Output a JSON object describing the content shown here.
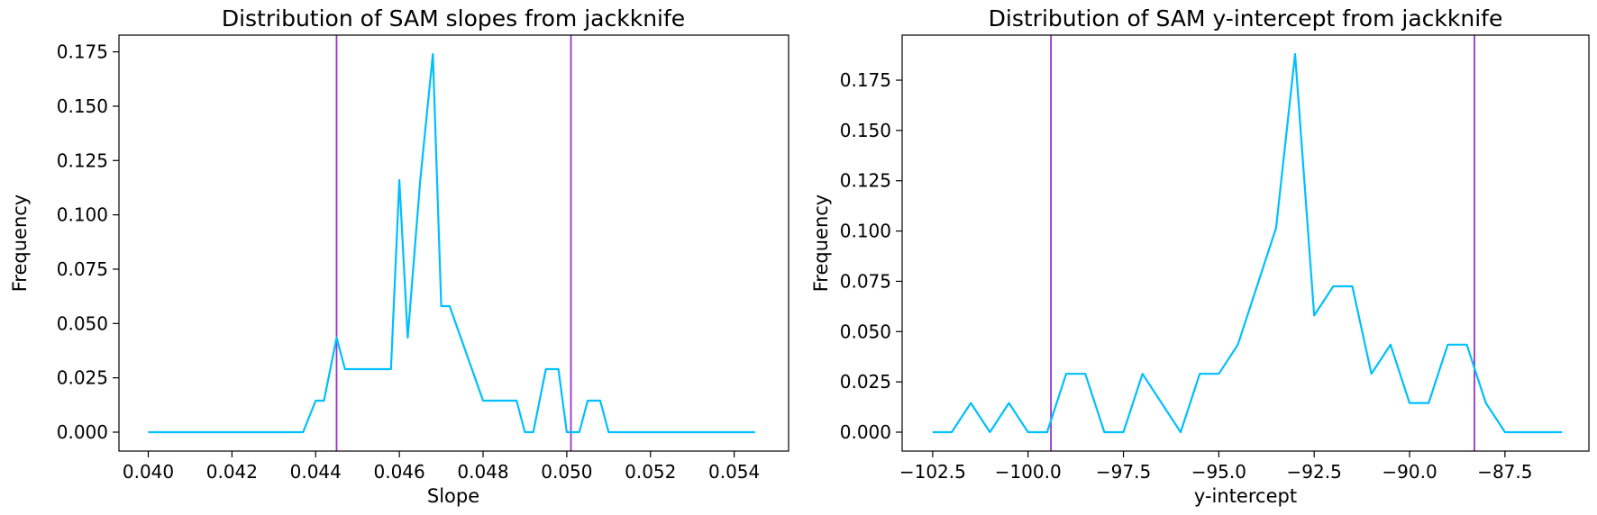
{
  "chart_data": [
    {
      "type": "line",
      "title": "Distribution of SAM slopes from jackknife",
      "xlabel": "Slope",
      "ylabel": "Frequency",
      "xlim": [
        0.0393,
        0.0553
      ],
      "ylim": [
        -0.0087,
        0.1827
      ],
      "xticks": [
        0.04,
        0.042,
        0.044,
        0.046,
        0.048,
        0.05,
        0.052,
        0.054
      ],
      "xtick_labels": [
        "0.040",
        "0.042",
        "0.044",
        "0.046",
        "0.048",
        "0.050",
        "0.052",
        "0.054"
      ],
      "yticks": [
        0.0,
        0.025,
        0.05,
        0.075,
        0.1,
        0.125,
        0.15,
        0.175
      ],
      "ytick_labels": [
        "0.000",
        "0.025",
        "0.050",
        "0.075",
        "0.100",
        "0.125",
        "0.150",
        "0.175"
      ],
      "vlines": [
        0.0445,
        0.0501
      ],
      "vline_color": "#9932cc",
      "series": [
        {
          "color": "#00bfff",
          "x": [
            0.04,
            0.0437,
            0.044,
            0.0442,
            0.0445,
            0.0447,
            0.0458,
            0.046,
            0.0462,
            0.0465,
            0.0468,
            0.047,
            0.0472,
            0.048,
            0.0488,
            0.049,
            0.0492,
            0.0495,
            0.0498,
            0.05,
            0.0503,
            0.0505,
            0.0508,
            0.051,
            0.0545
          ],
          "y": [
            0.0,
            0.0,
            0.0145,
            0.0145,
            0.0435,
            0.029,
            0.029,
            0.116,
            0.0435,
            0.116,
            0.174,
            0.058,
            0.058,
            0.0145,
            0.0145,
            0.0,
            0.0,
            0.029,
            0.029,
            0.0,
            0.0,
            0.0145,
            0.0145,
            0.0,
            0.0
          ]
        }
      ]
    },
    {
      "type": "line",
      "title": "Distribution of SAM y-intercept from jackknife",
      "xlabel": "y-intercept",
      "ylabel": "Frequency",
      "xlim": [
        -103.3,
        -85.3
      ],
      "ylim": [
        -0.0094,
        0.1974
      ],
      "xticks": [
        -102.5,
        -100.0,
        -97.5,
        -95.0,
        -92.5,
        -90.0,
        -87.5
      ],
      "xtick_labels": [
        "−102.5",
        "−100.0",
        "−97.5",
        "−95.0",
        "−92.5",
        "−90.0",
        "−87.5"
      ],
      "yticks": [
        0.0,
        0.025,
        0.05,
        0.075,
        0.1,
        0.125,
        0.15,
        0.175
      ],
      "ytick_labels": [
        "0.000",
        "0.025",
        "0.050",
        "0.075",
        "0.100",
        "0.125",
        "0.150",
        "0.175"
      ],
      "vlines": [
        -99.4,
        -88.3
      ],
      "vline_color": "#9932cc",
      "series": [
        {
          "color": "#00bfff",
          "x": [
            -102.5,
            -102.0,
            -101.5,
            -101.0,
            -100.5,
            -100.0,
            -99.5,
            -99.0,
            -98.5,
            -98.0,
            -97.5,
            -97.0,
            -96.0,
            -95.5,
            -95.0,
            -94.5,
            -93.5,
            -93.0,
            -92.5,
            -92.0,
            -91.5,
            -91.0,
            -90.5,
            -90.0,
            -89.5,
            -89.0,
            -88.5,
            -88.0,
            -87.5,
            -86.0
          ],
          "y": [
            0.0,
            0.0,
            0.0145,
            0.0,
            0.0145,
            0.0,
            0.0,
            0.029,
            0.029,
            0.0,
            0.0,
            0.029,
            0.0,
            0.029,
            0.029,
            0.0435,
            0.1015,
            0.188,
            0.058,
            0.0725,
            0.0725,
            0.029,
            0.0435,
            0.0145,
            0.0145,
            0.0435,
            0.0435,
            0.0145,
            0.0,
            0.0
          ]
        }
      ]
    }
  ]
}
